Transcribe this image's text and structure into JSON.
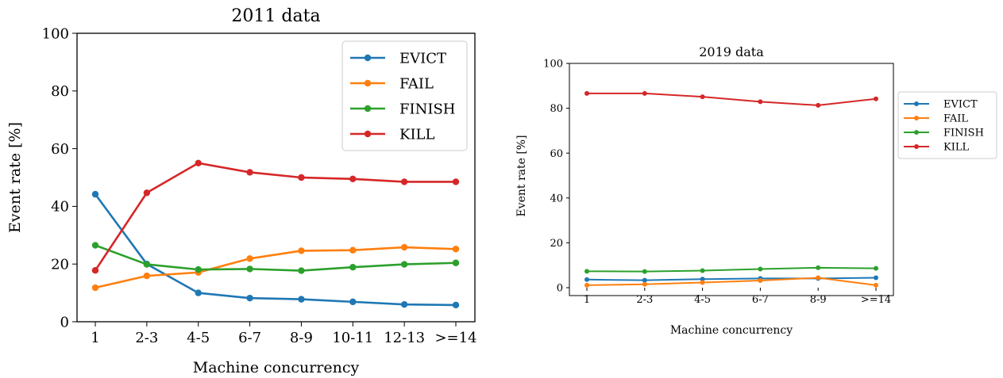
{
  "chart_data": [
    {
      "type": "line",
      "title": "2011 data",
      "xlabel": "Machine concurrency",
      "ylabel": "Event rate [%]",
      "ylim": [
        0,
        100
      ],
      "yticks": [
        "0",
        "20",
        "40",
        "60",
        "80",
        "100"
      ],
      "categories": [
        "1",
        "2-3",
        "4-5",
        "6-7",
        "8-9",
        "10-11",
        "12-13",
        ">=14"
      ],
      "legend_position": "top-right",
      "grid": false,
      "series": [
        {
          "name": "EVICT",
          "color": "#1f77b4",
          "values": [
            44.2,
            20.0,
            10.0,
            8.2,
            7.8,
            6.9,
            6.0,
            5.8
          ]
        },
        {
          "name": "FAIL",
          "color": "#ff7f0e",
          "values": [
            11.8,
            15.9,
            17.1,
            21.9,
            24.6,
            24.8,
            25.8,
            25.2
          ]
        },
        {
          "name": "FINISH",
          "color": "#2ca02c",
          "values": [
            26.5,
            19.9,
            18.1,
            18.3,
            17.7,
            18.9,
            19.9,
            20.4
          ]
        },
        {
          "name": "KILL",
          "color": "#d62728",
          "values": [
            17.8,
            44.7,
            55.0,
            51.8,
            50.0,
            49.5,
            48.5,
            48.5
          ]
        }
      ]
    },
    {
      "type": "line",
      "title": "2019 data",
      "xlabel": "Machine concurrency",
      "ylabel": "Event rate [%]",
      "ylim": [
        0,
        100
      ],
      "yticks": [
        "0",
        "20",
        "40",
        "60",
        "80",
        "100"
      ],
      "categories": [
        "1",
        "2-3",
        "4-5",
        "6-7",
        "8-9",
        ">=14"
      ],
      "legend_position": "outside-right",
      "grid": false,
      "series": [
        {
          "name": "EVICT",
          "color": "#1f77b4",
          "values": [
            3.6,
            3.3,
            3.8,
            4.1,
            4.1,
            4.4
          ]
        },
        {
          "name": "FAIL",
          "color": "#ff7f0e",
          "values": [
            1.1,
            1.5,
            2.3,
            3.2,
            4.4,
            1.1
          ]
        },
        {
          "name": "FINISH",
          "color": "#2ca02c",
          "values": [
            7.3,
            7.2,
            7.6,
            8.3,
            8.9,
            8.6
          ]
        },
        {
          "name": "KILL",
          "color": "#d62728",
          "values": [
            86.6,
            86.6,
            85.1,
            82.9,
            81.3,
            84.2
          ]
        }
      ]
    }
  ]
}
